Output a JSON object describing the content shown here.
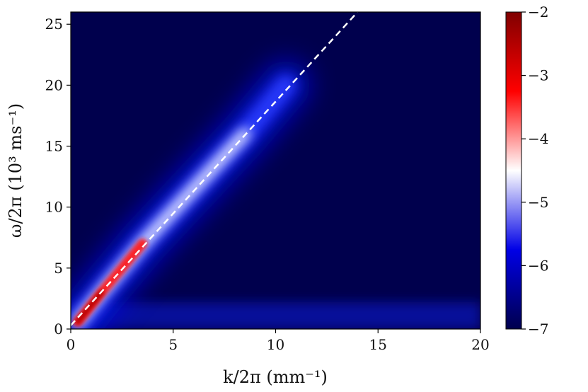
{
  "chart_data": {
    "type": "heatmap",
    "title": "",
    "xlabel": "k/2π (mm⁻¹)",
    "ylabel": "ω/2π (10³ ms⁻¹)",
    "xlim": [
      0,
      20
    ],
    "ylim": [
      0,
      26
    ],
    "x_ticks": [
      0,
      5,
      10,
      15,
      20
    ],
    "y_ticks": [
      0,
      5,
      10,
      15,
      20,
      25
    ],
    "colorbar": {
      "range": [
        -7,
        -2
      ],
      "ticks": [
        -7,
        -6,
        -5,
        -4,
        -3,
        -2
      ],
      "colors": [
        "#00004d",
        "#0000e6",
        "#ffffff",
        "#ff0000",
        "#800000"
      ]
    },
    "dashed_line": {
      "color": "#ffffff",
      "points": [
        [
          0,
          0.3
        ],
        [
          14,
          26
        ]
      ]
    },
    "ridge": {
      "points": [
        [
          0.35,
          0.6
        ],
        [
          1.5,
          3
        ],
        [
          3.5,
          7
        ],
        [
          6,
          11.5
        ],
        [
          8.5,
          16
        ],
        [
          10.5,
          20
        ]
      ]
    },
    "low_frequency_band": [
      0,
      2.2
    ]
  }
}
